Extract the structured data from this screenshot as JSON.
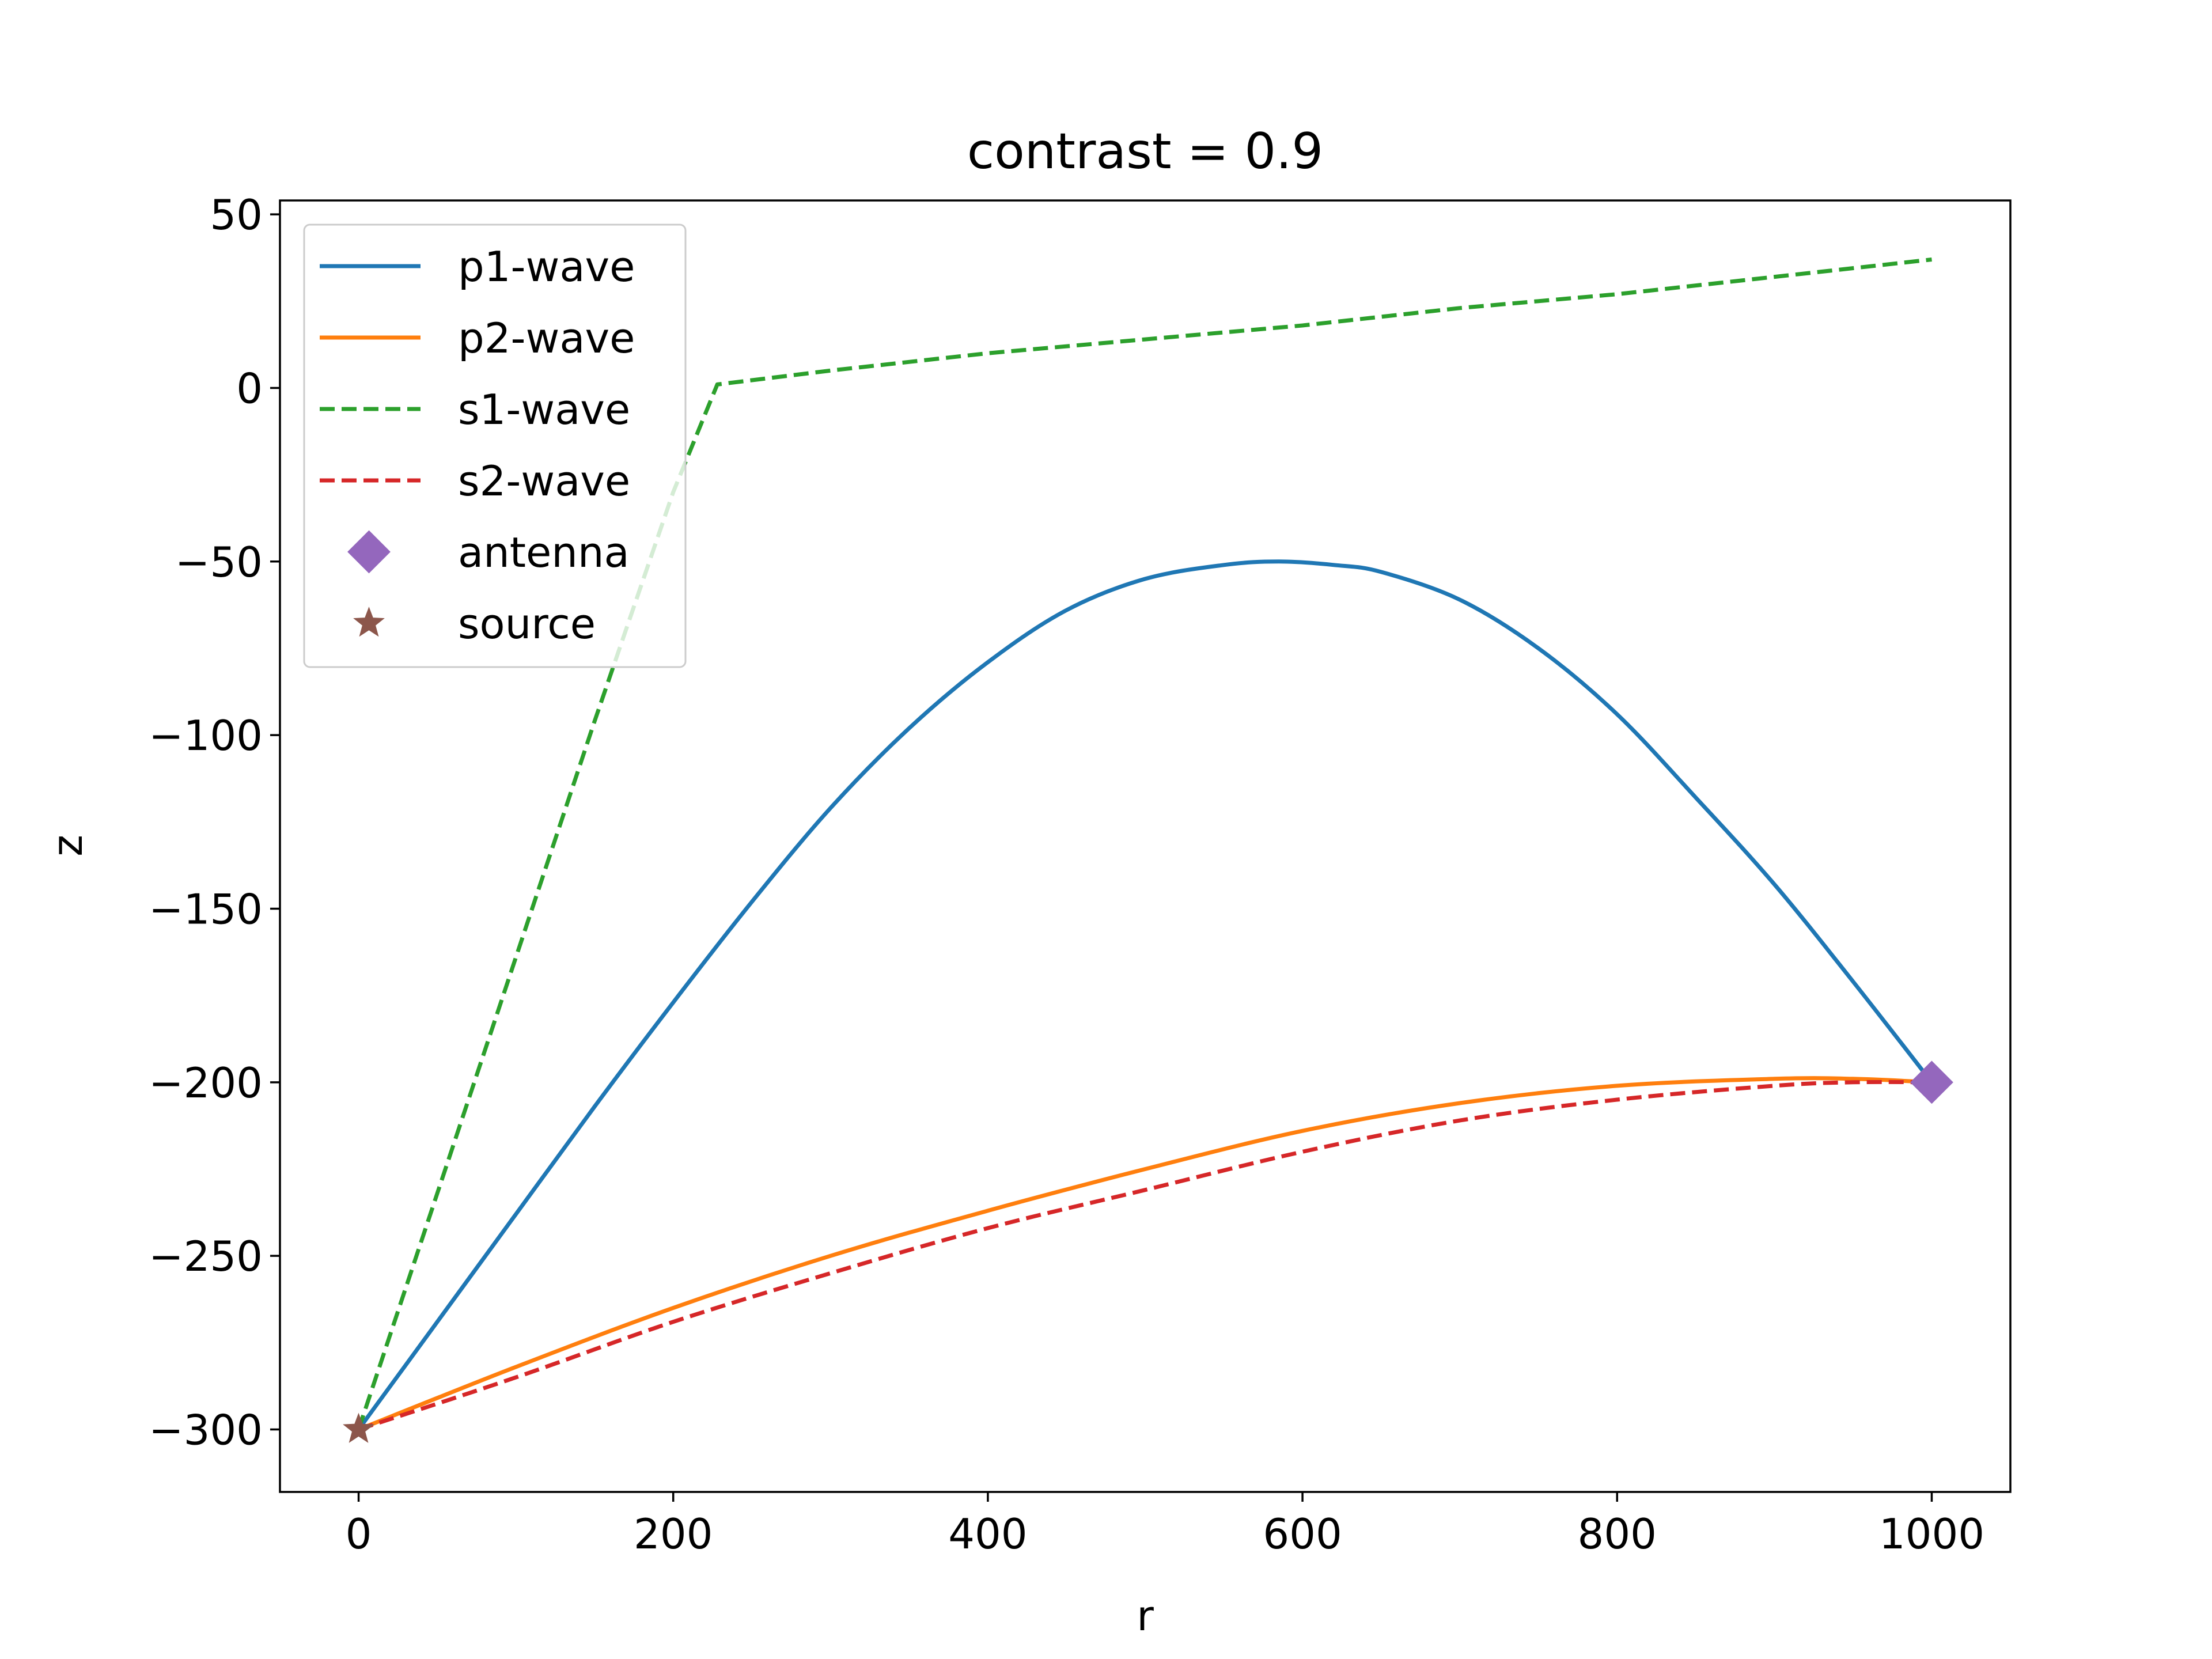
{
  "chart_data": {
    "type": "line",
    "title": "contrast = 0.9",
    "xlabel": "r",
    "ylabel": "z",
    "xlim": [
      -50,
      1050
    ],
    "ylim": [
      -318,
      54
    ],
    "xticks": [
      0,
      200,
      400,
      600,
      800,
      1000
    ],
    "yticks": [
      50,
      0,
      -50,
      -100,
      -150,
      -200,
      -250,
      -300
    ],
    "xtick_labels": [
      "0",
      "200",
      "400",
      "600",
      "800",
      "1000"
    ],
    "ytick_labels": [
      "50",
      "0",
      "−50",
      "−100",
      "−150",
      "−200",
      "−250",
      "−300"
    ],
    "grid": false,
    "legend_position": "upper-left",
    "series": [
      {
        "name": "p1-wave",
        "color": "#1f77b4",
        "style": "solid",
        "x": [
          0,
          50,
          100,
          150,
          200,
          250,
          300,
          350,
          400,
          450,
          500,
          550,
          585,
          620,
          650,
          700,
          750,
          800,
          850,
          900,
          950,
          1000
        ],
        "y": [
          -300,
          -269,
          -238,
          -207,
          -177,
          -148,
          -121,
          -98,
          -79,
          -64,
          -55,
          -51,
          -50,
          -51,
          -53,
          -61,
          -75,
          -94,
          -118,
          -143,
          -171,
          -200
        ]
      },
      {
        "name": "p2-wave",
        "color": "#ff7f0e",
        "style": "solid",
        "x": [
          0,
          100,
          200,
          300,
          400,
          500,
          600,
          700,
          800,
          900,
          950,
          1000
        ],
        "y": [
          -300,
          -282,
          -265,
          -250,
          -237,
          -225,
          -214,
          -206,
          -201,
          -199,
          -199,
          -200
        ]
      },
      {
        "name": "s1-wave",
        "color": "#2ca02c",
        "style": "dashed",
        "x": [
          0,
          50,
          100,
          150,
          200,
          228,
          300,
          400,
          500,
          600,
          700,
          800,
          900,
          1000
        ],
        "y": [
          -300,
          -232,
          -164,
          -96,
          -30,
          1,
          5,
          10,
          14,
          18,
          23,
          27,
          32,
          37
        ]
      },
      {
        "name": "s2-wave",
        "color": "#d62728",
        "style": "dashed",
        "x": [
          0,
          100,
          200,
          300,
          400,
          500,
          600,
          700,
          800,
          900,
          950,
          1000
        ],
        "y": [
          -300,
          -285,
          -269,
          -255,
          -242,
          -231,
          -220,
          -211,
          -205,
          -201,
          -200,
          -200
        ]
      }
    ],
    "markers": [
      {
        "name": "antenna",
        "color": "#9467bd",
        "shape": "diamond",
        "x": 1000,
        "y": -200
      },
      {
        "name": "source",
        "color": "#8c564b",
        "shape": "star",
        "x": 0,
        "y": -300
      }
    ]
  }
}
